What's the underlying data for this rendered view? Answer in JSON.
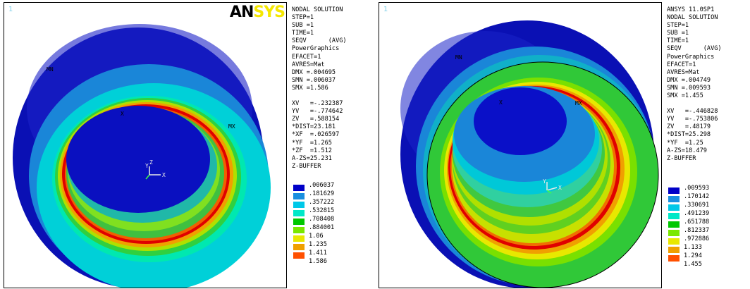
{
  "panels": [
    {
      "window_number": "1",
      "logo_text_dark": "AN",
      "logo_text_light": "SYS",
      "info_lines_top": [
        "NODAL SOLUTION",
        "STEP=1",
        "SUB =1",
        "TIME=1",
        "SEQV      (AVG)",
        "PowerGraphics",
        "EFACET=1",
        "AVRES=Mat",
        "DMX =.004695",
        "SMN =.006037",
        "SMX =1.586"
      ],
      "info_lines_view": [
        "XV   =-.232387",
        "YV   =-.774642",
        "ZV   =.588154",
        "*DIST=23.181",
        "*XF  =.026597",
        "*YF  =1.265",
        "*ZF  =1.512",
        "A-ZS=25.231",
        "Z-BUFFER"
      ],
      "legend_values": [
        ".006037",
        ".181629",
        ".357222",
        ".532815",
        ".708408",
        ".884001",
        "1.06",
        "1.235",
        "1.411",
        "1.586"
      ],
      "markers": {
        "mn": "MN",
        "mx": "MX",
        "x": "X"
      },
      "triad": {
        "y": "Y",
        "z": "Z",
        "x": "X"
      }
    },
    {
      "window_number": "1",
      "info_lines_top": [
        "ANSYS 11.0SP1",
        "NODAL SOLUTION",
        "STEP=1",
        "SUB =1",
        "TIME=1",
        "SEQV      (AVG)",
        "PowerGraphics",
        "EFACET=1",
        "AVRES=Mat",
        "DMX =.004749",
        "SMN =.009593",
        "SMX =1.455"
      ],
      "info_lines_view": [
        "XV   =-.446828",
        "YV   =-.753806",
        "ZV   =.48179",
        "*DIST=25.298",
        "*YF  =1.25",
        "A-ZS=18.479",
        "Z-BUFFER"
      ],
      "legend_values": [
        ".009593",
        ".170142",
        ".330691",
        ".491239",
        ".651788",
        ".812337",
        ".972886",
        "1.133",
        "1.294",
        "1.455"
      ],
      "markers": {
        "mn": "MN",
        "mx": "MX",
        "x": "X"
      },
      "triad": {
        "y": "Y",
        "z": "",
        "x": "X"
      }
    }
  ],
  "legend_colors": [
    "#0000c8",
    "#1a8fe0",
    "#00c8e8",
    "#00e8c8",
    "#00c800",
    "#7ae800",
    "#e8e800",
    "#f0a000",
    "#ff5000",
    "#e00000"
  ]
}
